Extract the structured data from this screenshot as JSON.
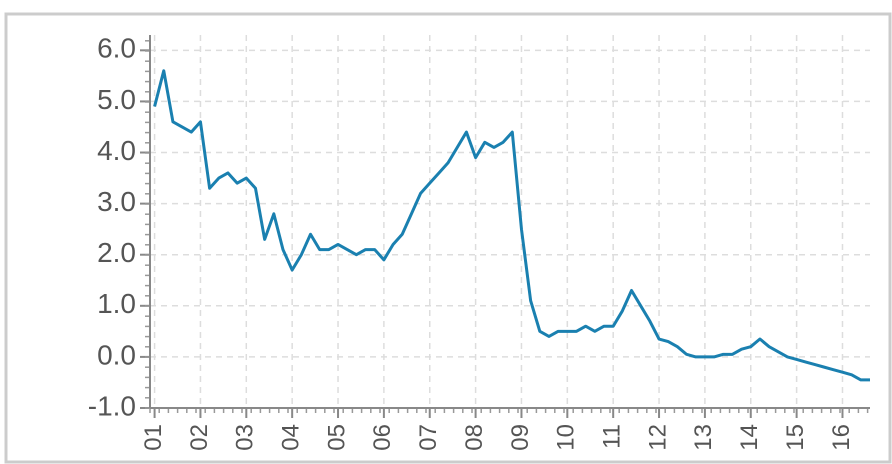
{
  "chart_data": {
    "type": "line",
    "x": [
      1.0,
      1.2,
      1.4,
      1.6,
      1.8,
      2.0,
      2.2,
      2.4,
      2.6,
      2.8,
      3.0,
      3.2,
      3.4,
      3.6,
      3.8,
      4.0,
      4.2,
      4.4,
      4.6,
      4.8,
      5.0,
      5.2,
      5.4,
      5.6,
      5.8,
      6.0,
      6.2,
      6.4,
      6.6,
      6.8,
      7.0,
      7.2,
      7.4,
      7.6,
      7.8,
      8.0,
      8.2,
      8.4,
      8.6,
      8.8,
      9.0,
      9.2,
      9.4,
      9.6,
      9.8,
      10.0,
      10.2,
      10.4,
      10.6,
      10.8,
      11.0,
      11.2,
      11.4,
      11.6,
      11.8,
      12.0,
      12.2,
      12.4,
      12.6,
      12.8,
      13.0,
      13.2,
      13.4,
      13.6,
      13.8,
      14.0,
      14.2,
      14.4,
      14.6,
      14.8,
      15.0,
      15.2,
      15.4,
      15.6,
      15.8,
      16.0,
      16.2,
      16.4,
      16.6
    ],
    "series": [
      {
        "color": "#1a80b0",
        "values": [
          4.9,
          5.6,
          4.6,
          4.5,
          4.4,
          4.6,
          3.3,
          3.5,
          3.6,
          3.4,
          3.5,
          3.3,
          2.3,
          2.8,
          2.1,
          1.7,
          2.0,
          2.4,
          2.1,
          2.1,
          2.2,
          2.1,
          2.0,
          2.1,
          2.1,
          1.9,
          2.2,
          2.4,
          2.8,
          3.2,
          3.4,
          3.6,
          3.8,
          4.1,
          4.4,
          3.9,
          4.2,
          4.1,
          4.2,
          4.4,
          2.5,
          1.1,
          0.5,
          0.4,
          0.5,
          0.5,
          0.5,
          0.6,
          0.5,
          0.6,
          0.6,
          0.9,
          1.3,
          1.0,
          0.7,
          0.35,
          0.3,
          0.2,
          0.05,
          0.0,
          0.0,
          0.0,
          0.05,
          0.05,
          0.15,
          0.2,
          0.35,
          0.2,
          0.1,
          0.0,
          -0.05,
          -0.1,
          -0.15,
          -0.2,
          -0.25,
          -0.3,
          -0.35,
          -0.45,
          -0.45
        ]
      }
    ],
    "xlim": [
      0.9,
      16.6
    ],
    "ylim": [
      -1,
      6.3
    ],
    "xticks": [
      {
        "value": 1,
        "label": "01"
      },
      {
        "value": 2,
        "label": "02"
      },
      {
        "value": 3,
        "label": "03"
      },
      {
        "value": 4,
        "label": "04"
      },
      {
        "value": 5,
        "label": "05"
      },
      {
        "value": 6,
        "label": "06"
      },
      {
        "value": 7,
        "label": "07"
      },
      {
        "value": 8,
        "label": "08"
      },
      {
        "value": 9,
        "label": "09"
      },
      {
        "value": 10,
        "label": "10"
      },
      {
        "value": 11,
        "label": "11"
      },
      {
        "value": 12,
        "label": "12"
      },
      {
        "value": 13,
        "label": "13"
      },
      {
        "value": 14,
        "label": "14"
      },
      {
        "value": 15,
        "label": "15"
      },
      {
        "value": 16,
        "label": "16"
      }
    ],
    "yticks": [
      {
        "value": -1,
        "label": "-1.0"
      },
      {
        "value": 0,
        "label": "0.0"
      },
      {
        "value": 1,
        "label": "1.0"
      },
      {
        "value": 2,
        "label": "2.0"
      },
      {
        "value": 3,
        "label": "3.0"
      },
      {
        "value": 4,
        "label": "4.0"
      },
      {
        "value": 5,
        "label": "5.0"
      },
      {
        "value": 6,
        "label": "6.0"
      }
    ],
    "grid": true
  }
}
